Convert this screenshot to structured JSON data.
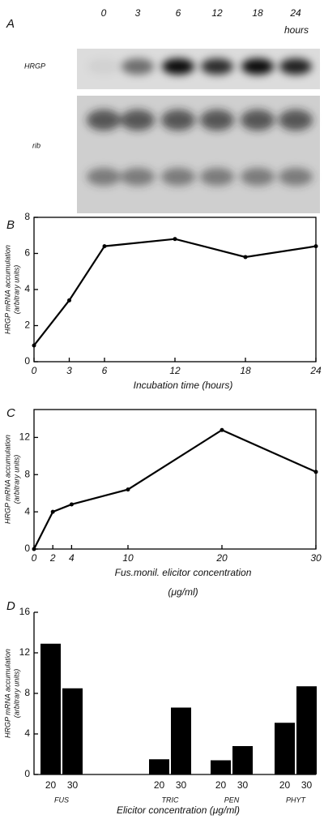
{
  "blot": {
    "label": "A",
    "lanes": [
      "0",
      "3",
      "6",
      "12",
      "18",
      "24"
    ],
    "unit": "hours",
    "rows": [
      "HRGP",
      "rib"
    ]
  },
  "chart_data": [
    {
      "type": "line",
      "label": "B",
      "x": [
        0,
        3,
        6,
        12,
        18,
        24
      ],
      "values": [
        0.9,
        3.4,
        6.4,
        6.8,
        5.8,
        6.4
      ],
      "xlim": [
        0,
        24
      ],
      "xticks": [
        0,
        3,
        6,
        12,
        18,
        24
      ],
      "ylim": [
        0,
        8
      ],
      "yticks": [
        0,
        2,
        4,
        6,
        8
      ],
      "xlabel": [
        "Incubation time (hours)"
      ],
      "ylabel": [
        "HRGP mRNA accumulation",
        "(arbitrary units)"
      ],
      "color": "#000"
    },
    {
      "type": "line",
      "label": "C",
      "x": [
        0,
        2,
        4,
        10,
        20,
        30
      ],
      "values": [
        0,
        4,
        4.8,
        6.4,
        12.8,
        8.3
      ],
      "xlim": [
        0,
        30
      ],
      "xticks": [
        0,
        2,
        4,
        10,
        20,
        30
      ],
      "ylim": [
        0,
        15
      ],
      "yticks": [
        0,
        4,
        8,
        12
      ],
      "xlabel": [
        "Fus.monil. elicitor concentration",
        "(μg/ml)"
      ],
      "ylabel": [
        "HRGP mRNA accumulation",
        "(arbitrary units)"
      ],
      "color": "#000"
    },
    {
      "type": "bar",
      "label": "D",
      "categories": [
        "FUS",
        "TRIC",
        "PEN",
        "PHYT"
      ],
      "series": [
        {
          "name": "20",
          "color": "#000",
          "values": [
            12.9,
            1.5,
            1.4,
            5.1
          ]
        },
        {
          "name": "30",
          "color": "#000",
          "values": [
            8.5,
            6.6,
            2.8,
            8.7
          ]
        }
      ],
      "ylim": [
        0,
        16
      ],
      "yticks": [
        0,
        4,
        8,
        12,
        16
      ],
      "xlabel": [
        "Elicitor concentration (μg/ml)"
      ],
      "ylabel": [
        "HRGP mRNA accumulation",
        "(arbitrary units)"
      ]
    }
  ]
}
